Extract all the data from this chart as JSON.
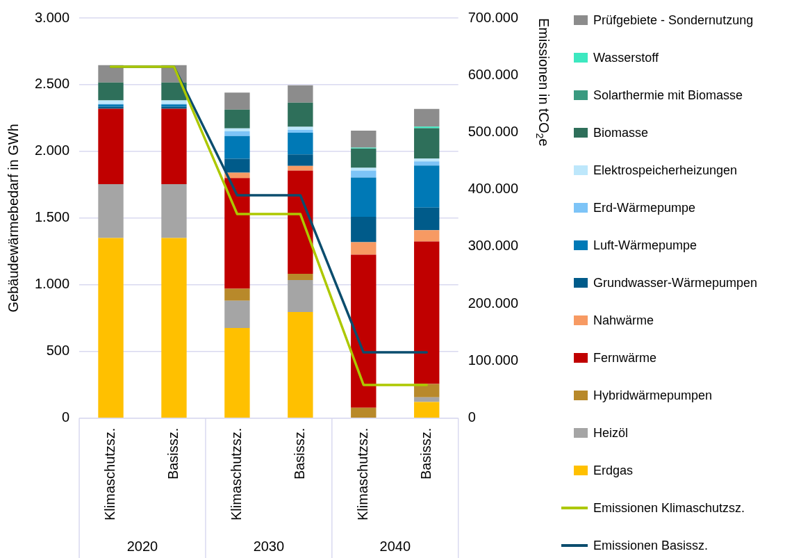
{
  "chart_data": {
    "type": "bar",
    "stacked": true,
    "ylabel": "Gebäudewärmebedarf in GWh",
    "y2label": "Emissionen in tCO$_{2}$e",
    "categories": [
      "Klimaschutzsz.",
      "Basissz.",
      "Klimaschutzsz.",
      "Basissz.",
      "Klimaschutzsz.",
      "Basissz."
    ],
    "annotations": [
      "2020",
      "2030",
      "2040"
    ],
    "ylim": [
      0,
      3000
    ],
    "yticks": [
      0,
      {
        "value": 500,
        "label": "500"
      },
      {
        "value": 1000,
        "label": "1.000"
      },
      {
        "value": 1500,
        "label": "1.500"
      },
      {
        "value": 2000,
        "label": "2.000"
      },
      {
        "value": 2500,
        "label": "2.500"
      },
      {
        "value": 3000,
        "label": "3.000"
      }
    ],
    "y2lim": [
      0,
      700000
    ],
    "y2ticks": [
      0,
      {
        "value": 100000,
        "label": "100.000"
      },
      {
        "value": 200000,
        "label": "200.000"
      },
      {
        "value": 300000,
        "label": "300.000"
      },
      {
        "value": 400000,
        "label": "400.000"
      },
      {
        "value": 500000,
        "label": "500.000"
      },
      {
        "value": 600000,
        "label": "600.000"
      },
      {
        "value": 700000,
        "label": "700.000"
      }
    ],
    "grid": "y",
    "legend": "right",
    "marker": "none",
    "series": [
      {
        "name": "Erdgas",
        "color": "#ffc000",
        "values": [
          1350,
          1350,
          675,
          795,
          0,
          120
        ]
      },
      {
        "name": "Heizöl",
        "color": "#a5a5a5",
        "values": [
          405,
          405,
          205,
          240,
          0,
          36
        ]
      },
      {
        "name": "Hybridwärmepumpen",
        "color": "#b8892a",
        "values": [
          0,
          0,
          90,
          47,
          77,
          100
        ]
      },
      {
        "name": "Fernwärme",
        "color": "#c00000",
        "values": [
          565,
          565,
          830,
          774,
          1148,
          1069
        ]
      },
      {
        "name": "Nahwärme",
        "color": "#f79a63",
        "values": [
          0,
          0,
          40,
          35,
          94,
          84
        ]
      },
      {
        "name": "Grundwasser-Wärmepumpen",
        "color": "#005b8a",
        "values": [
          16,
          16,
          105,
          86,
          190,
          169
        ]
      },
      {
        "name": "Luft-Wärmepumpe",
        "color": "#0079b6",
        "values": [
          16,
          16,
          170,
          163,
          295,
          316
        ]
      },
      {
        "name": "Erd-Wärmepumpe",
        "color": "#7dc4f7",
        "values": [
          5,
          5,
          35,
          21,
          52,
          31
        ]
      },
      {
        "name": "Elektrospeicherheizungen",
        "color": "#bde7fb",
        "values": [
          25,
          25,
          23,
          23,
          21,
          21
        ]
      },
      {
        "name": "Biomasse",
        "color": "#2e6f5a",
        "values": [
          134,
          134,
          140,
          181,
          144,
          228
        ]
      },
      {
        "name": "Solarthermie mit Biomasse",
        "color": "#3a9a80",
        "values": [
          0,
          0,
          0,
          0,
          0,
          0
        ]
      },
      {
        "name": "Wasserstoff",
        "color": "#3de8c0",
        "values": [
          0,
          0,
          0,
          0,
          7,
          12
        ]
      },
      {
        "name": "Prüfgebiete - Sondernutzung",
        "color": "#8c8c8c",
        "values": [
          131,
          131,
          128,
          131,
          128,
          133
        ]
      },
      {
        "name": "Emissionen Klimaschutzsz.",
        "type": "line",
        "axis": "y2",
        "color": "#adc800",
        "values": [
          615000,
          615000,
          357000,
          357000,
          58000,
          58000
        ]
      },
      {
        "name": "Emissionen Basissz.",
        "type": "line",
        "axis": "y2",
        "color": "#0b4d6e",
        "values": [
          615000,
          615000,
          390000,
          390000,
          115000,
          115000
        ]
      }
    ]
  }
}
